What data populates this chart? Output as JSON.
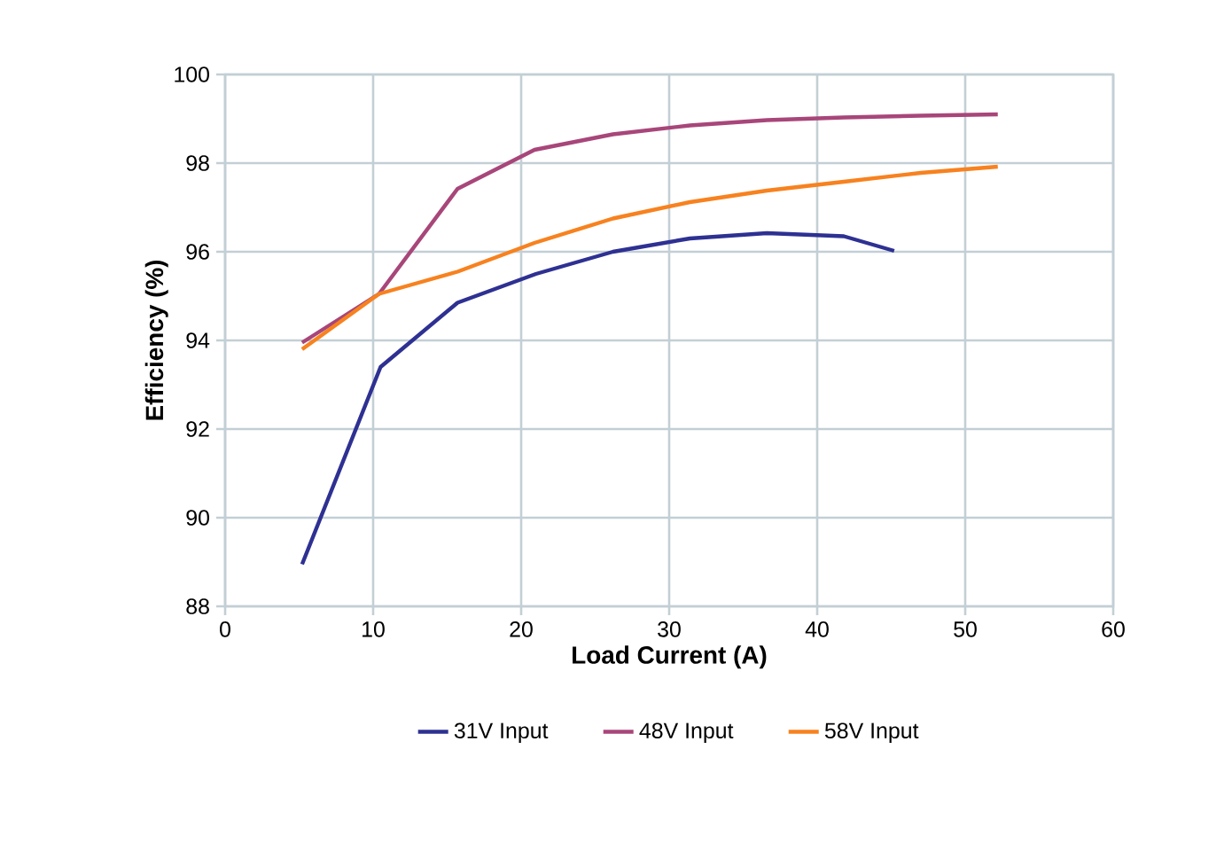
{
  "chart_data": {
    "type": "line",
    "xlabel": "Load Current (A)",
    "ylabel": "Efficiency (%)",
    "xlim": [
      0,
      60
    ],
    "xticks": [
      0,
      10,
      20,
      30,
      40,
      50,
      60
    ],
    "ylim": [
      88,
      100
    ],
    "yticks": [
      88,
      90,
      92,
      94,
      96,
      98,
      100
    ],
    "grid": true,
    "legend": "bottom",
    "marker": "none",
    "line_style": "solid",
    "series": [
      {
        "name": "31V Input",
        "color": "#2e3192",
        "x": [
          5.2,
          10.5,
          15.7,
          21,
          26.2,
          31.4,
          36.6,
          41.8,
          45.2
        ],
        "values": [
          88.95,
          93.4,
          94.85,
          95.5,
          96.0,
          96.3,
          96.42,
          96.35,
          96.02
        ]
      },
      {
        "name": "48V Input",
        "color": "#a8467a",
        "x": [
          5.2,
          10.4,
          15.7,
          20.9,
          26.2,
          31.4,
          36.6,
          41.8,
          47,
          52.2
        ],
        "values": [
          93.95,
          95.05,
          97.42,
          98.3,
          98.65,
          98.85,
          98.97,
          99.03,
          99.07,
          99.1
        ]
      },
      {
        "name": "58V Input",
        "color": "#f7821f",
        "x": [
          5.2,
          10.4,
          15.7,
          20.9,
          26.2,
          31.4,
          36.6,
          41.8,
          47,
          52.2
        ],
        "values": [
          93.8,
          95.05,
          95.55,
          96.2,
          96.75,
          97.12,
          97.38,
          97.58,
          97.78,
          97.92
        ]
      }
    ]
  }
}
